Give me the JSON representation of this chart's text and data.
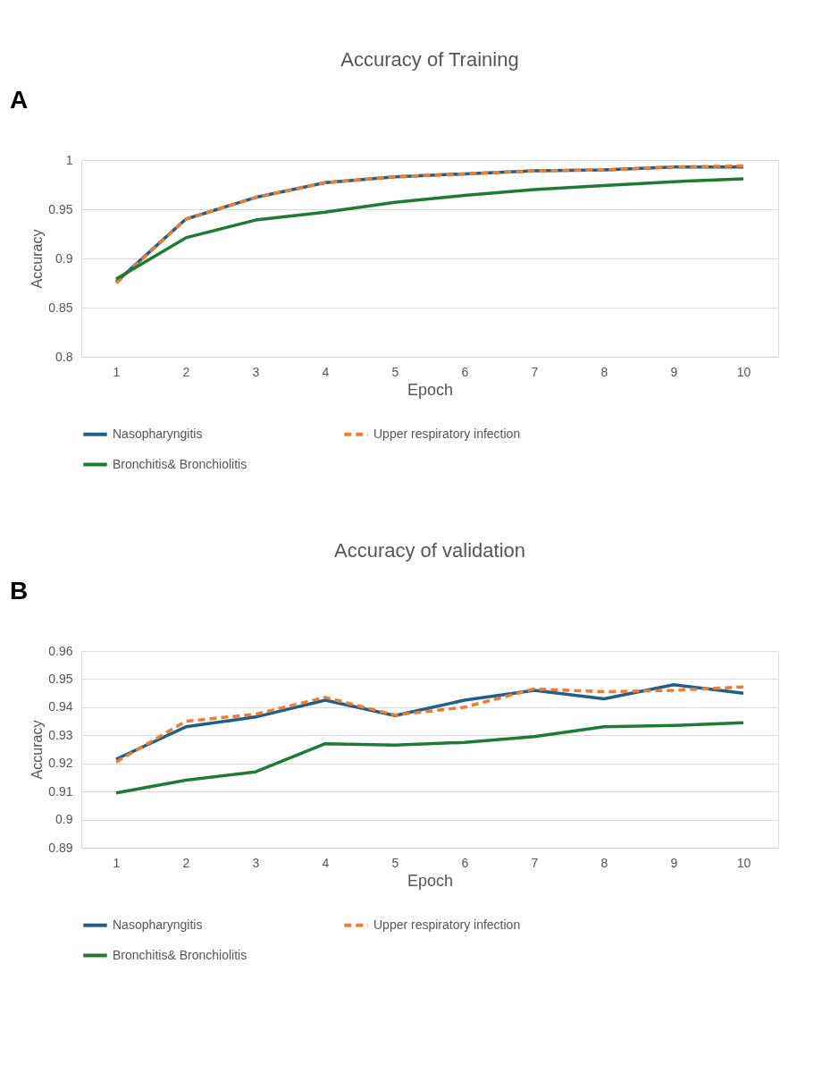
{
  "chart_data": [
    {
      "type": "line",
      "title": "Accuracy of Training",
      "xlabel": "Epoch",
      "ylabel": "Accuracy",
      "annotations": [
        "A"
      ],
      "categories": [
        "1",
        "2",
        "3",
        "4",
        "5",
        "6",
        "7",
        "8",
        "9",
        "10"
      ],
      "ylim": [
        0.8,
        1.0
      ],
      "yticks": [
        0.8,
        0.85,
        0.9,
        0.95,
        1
      ],
      "grid": "y",
      "legend": "bottom",
      "marker": "none",
      "series": [
        {
          "name": "Nasopharyngitis",
          "color": "#1f5f8b",
          "line_style": "solid",
          "values": [
            0.876,
            0.94,
            0.962,
            0.977,
            0.983,
            0.986,
            0.989,
            0.99,
            0.993,
            0.993
          ]
        },
        {
          "name": "Upper respiratory infection",
          "color": "#ed7d31",
          "line_style": "dashed",
          "values": [
            0.875,
            0.94,
            0.962,
            0.977,
            0.983,
            0.986,
            0.989,
            0.99,
            0.993,
            0.994
          ]
        },
        {
          "name": "Bronchitis& Bronchiolitis",
          "color": "#1e7b34",
          "line_style": "solid",
          "values": [
            0.879,
            0.921,
            0.939,
            0.947,
            0.957,
            0.964,
            0.97,
            0.974,
            0.978,
            0.981
          ]
        }
      ]
    },
    {
      "type": "line",
      "title": "Accuracy of validation",
      "xlabel": "Epoch",
      "ylabel": "Accuracy",
      "annotations": [
        "B"
      ],
      "categories": [
        "1",
        "2",
        "3",
        "4",
        "5",
        "6",
        "7",
        "8",
        "9",
        "10"
      ],
      "ylim": [
        0.89,
        0.96
      ],
      "yticks": [
        0.89,
        0.9,
        0.91,
        0.92,
        0.93,
        0.94,
        0.95,
        0.96
      ],
      "grid": "y",
      "legend": "bottom",
      "marker": "none",
      "series": [
        {
          "name": "Nasopharyngitis",
          "color": "#1f5f8b",
          "line_style": "solid",
          "values": [
            0.9215,
            0.933,
            0.9365,
            0.9425,
            0.937,
            0.9425,
            0.946,
            0.943,
            0.948,
            0.945
          ]
        },
        {
          "name": "Upper respiratory infection",
          "color": "#ed7d31",
          "line_style": "dashed",
          "values": [
            0.9205,
            0.935,
            0.9375,
            0.9435,
            0.9372,
            0.94,
            0.9465,
            0.9455,
            0.946,
            0.9472
          ]
        },
        {
          "name": "Bronchitis& Bronchiolitis",
          "color": "#1e7b34",
          "line_style": "solid",
          "values": [
            0.9095,
            0.914,
            0.917,
            0.927,
            0.9265,
            0.9275,
            0.9295,
            0.933,
            0.9335,
            0.9345
          ]
        }
      ]
    }
  ]
}
